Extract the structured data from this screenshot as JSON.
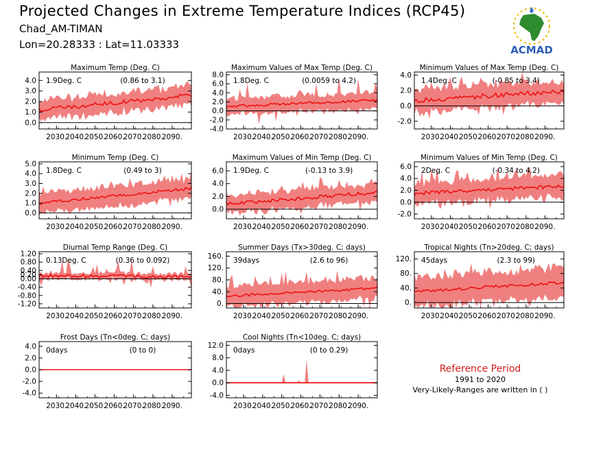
{
  "header": {
    "title": "Projected Changes in Extreme Temperature Indices (RCP45)",
    "station": "Chad_AM-TIMAN",
    "coords": "Lon=20.28333 : Lat=11.03333",
    "logo_text": "ACMAD"
  },
  "reference": {
    "title": "Reference Period",
    "years": "1991 to 2020",
    "note": "Very-Likely-Ranges are written in ( )"
  },
  "colors": {
    "band": "#f08080",
    "line": "#ee1111",
    "zero_line": "#000000",
    "ref_title": "#d41a1a"
  },
  "chart_data": [
    {
      "type": "area",
      "title": "Maximum Temp (Deg. C)",
      "mean_label": "1.9Deg. C",
      "range_label": "(0.86 to 3.1)",
      "x": [
        2021,
        2100
      ],
      "x_ticks": [
        "2030.",
        "2040.",
        "2050.",
        "2060.",
        "2070.",
        "2080.",
        "2090."
      ],
      "ylim": [
        -0.6,
        4.8
      ],
      "y_ticks": [
        "0.0",
        "1.0",
        "2.0",
        "3.0",
        "4.0"
      ],
      "start": 1.2,
      "end": 2.6,
      "band_half": 0.9,
      "noise": 0.2,
      "spike": 0.5
    },
    {
      "type": "area",
      "title": "Maximum Values of Max Temp (Deg. C)",
      "mean_label": "1.8Deg. C",
      "range_label": "(0.0059 to 4.2)",
      "x": [
        2021,
        2100
      ],
      "x_ticks": [
        "2030.",
        "2040.",
        "2050.",
        "2060.",
        "2070.",
        "2080.",
        "2090."
      ],
      "ylim": [
        -4,
        8.6
      ],
      "y_ticks": [
        "-4.0",
        "-2.0",
        "0.0",
        "2.0",
        "4.0",
        "6.0",
        "8.0"
      ],
      "start": 1.0,
      "end": 2.4,
      "band_half": 1.8,
      "noise": 0.3,
      "spike": 3.5
    },
    {
      "type": "area",
      "title": "Minimum Values of Max Temp (Deg. C)",
      "mean_label": "1.4Deg. C",
      "range_label": "(-0.85 to 3.4)",
      "x": [
        2021,
        2100
      ],
      "x_ticks": [
        "2030.",
        "2040.",
        "2050.",
        "2060.",
        "2070.",
        "2080.",
        "2090."
      ],
      "ylim": [
        -3,
        4.4
      ],
      "y_ticks": [
        "-2.0",
        "0.0",
        "2.0",
        "4.0"
      ],
      "start": 0.7,
      "end": 1.9,
      "band_half": 1.5,
      "noise": 0.3,
      "spike": 1.5
    },
    {
      "type": "area",
      "title": "Minimum Temp (Deg. C)",
      "mean_label": "1.8Deg. C",
      "range_label": "(0.49 to 3)",
      "x": [
        2021,
        2100
      ],
      "x_ticks": [
        "2030.",
        "2040.",
        "2050.",
        "2060.",
        "2070.",
        "2080.",
        "2090."
      ],
      "ylim": [
        -0.6,
        5.2
      ],
      "y_ticks": [
        "0.0",
        "1.0",
        "2.0",
        "3.0",
        "4.0",
        "5.0"
      ],
      "start": 1.0,
      "end": 2.5,
      "band_half": 1.0,
      "noise": 0.15,
      "spike": 0.6
    },
    {
      "type": "area",
      "title": "Maximum Values of Min Temp (Deg. C)",
      "mean_label": "1.9Deg. C",
      "range_label": "(-0.13 to 3.9)",
      "x": [
        2021,
        2100
      ],
      "x_ticks": [
        "2030.",
        "2040.",
        "2050.",
        "2060.",
        "2070.",
        "2080.",
        "2090."
      ],
      "ylim": [
        -1.5,
        7.4
      ],
      "y_ticks": [
        "0.0",
        "2.0",
        "4.0",
        "6.0"
      ],
      "start": 0.8,
      "end": 2.6,
      "band_half": 1.4,
      "noise": 0.3,
      "spike": 1.6
    },
    {
      "type": "area",
      "title": "Minimum Values of Min Temp (Deg. C)",
      "mean_label": "2Deg. C",
      "range_label": "(-0.34 to 4.2)",
      "x": [
        2021,
        2100
      ],
      "x_ticks": [
        "2030.",
        "2040.",
        "2050.",
        "2060.",
        "2070.",
        "2080.",
        "2090."
      ],
      "ylim": [
        -2.8,
        6.8
      ],
      "y_ticks": [
        "-2.0",
        "0.0",
        "2.0",
        "4.0",
        "6.0"
      ],
      "start": 1.5,
      "end": 2.7,
      "band_half": 1.8,
      "noise": 0.3,
      "spike": 2.0
    },
    {
      "type": "area",
      "title": "Diurnal Temp Range (Deg. C)",
      "mean_label": "0.13Deg. C",
      "range_label": "(0.36 to 0.092)",
      "x": [
        2021,
        2100
      ],
      "x_ticks": [
        "2030.",
        "2040.",
        "2050.",
        "2060.",
        "2070.",
        "2080.",
        "2090."
      ],
      "ylim": [
        -1.4,
        1.3
      ],
      "y_ticks": [
        "-1.20",
        "-0.80",
        "-0.40",
        "0.00",
        "0.20",
        "0.40",
        "0.80",
        "1.20"
      ],
      "start": 0.15,
      "end": 0.1,
      "band_half": 0.15,
      "noise": 0.08,
      "spike": 0.7
    },
    {
      "type": "area",
      "title": "Summer Days (Tx>30deg. C; days)",
      "mean_label": "39days",
      "range_label": "(2.6 to 96)",
      "x": [
        2021,
        2100
      ],
      "x_ticks": [
        "2030.",
        "2040.",
        "2050.",
        "2060.",
        "2070.",
        "2080.",
        "2090."
      ],
      "ylim": [
        -15,
        175
      ],
      "y_ticks": [
        "0.",
        "40.",
        "80.",
        "120.",
        "160."
      ],
      "start": 25,
      "end": 52,
      "band_half": 35,
      "noise": 4,
      "spike": 40
    },
    {
      "type": "area",
      "title": "Tropical Nights (Tn>20deg. C; days)",
      "mean_label": "45days",
      "range_label": "(2.3 to 99)",
      "x": [
        2021,
        2100
      ],
      "x_ticks": [
        "2030.",
        "2040.",
        "2050.",
        "2060.",
        "2070.",
        "2080.",
        "2090."
      ],
      "ylim": [
        -15,
        140
      ],
      "y_ticks": [
        "0.",
        "40.",
        "80.",
        "120."
      ],
      "start": 30,
      "end": 55,
      "band_half": 40,
      "noise": 4,
      "spike": 20
    },
    {
      "type": "area",
      "title": "Frost Days (Tn<0deg. C; days)",
      "mean_label": "0days",
      "range_label": "(0 to 0)",
      "x": [
        2021,
        2100
      ],
      "x_ticks": [
        "2030.",
        "2040.",
        "2050.",
        "2060.",
        "2070.",
        "2080.",
        "2090."
      ],
      "ylim": [
        -4.8,
        4.8
      ],
      "y_ticks": [
        "-4.0",
        "-2.0",
        "0.0",
        "2.0",
        "4.0"
      ],
      "start": 0,
      "end": 0,
      "band_half": 0,
      "noise": 0,
      "spike": 0
    },
    {
      "type": "area",
      "title": "Cool Nights (Tn<10deg. C; days)",
      "mean_label": "0days",
      "range_label": "(0 to 0.29)",
      "x": [
        2021,
        2100
      ],
      "x_ticks": [
        "2030.",
        "2040.",
        "2050.",
        "2060.",
        "2070.",
        "2080.",
        "2090."
      ],
      "ylim": [
        -4.8,
        13.2
      ],
      "y_ticks": [
        "-4.0",
        "0.0",
        "4.0",
        "8.0",
        "12.0"
      ],
      "start": 0,
      "end": 0,
      "band_half": 0,
      "noise": 0,
      "spike": 0,
      "peaks": [
        [
          2051,
          2.8
        ],
        [
          2063,
          7.5
        ],
        [
          2059,
          0.8
        ],
        [
          2097,
          0.4
        ]
      ]
    }
  ]
}
